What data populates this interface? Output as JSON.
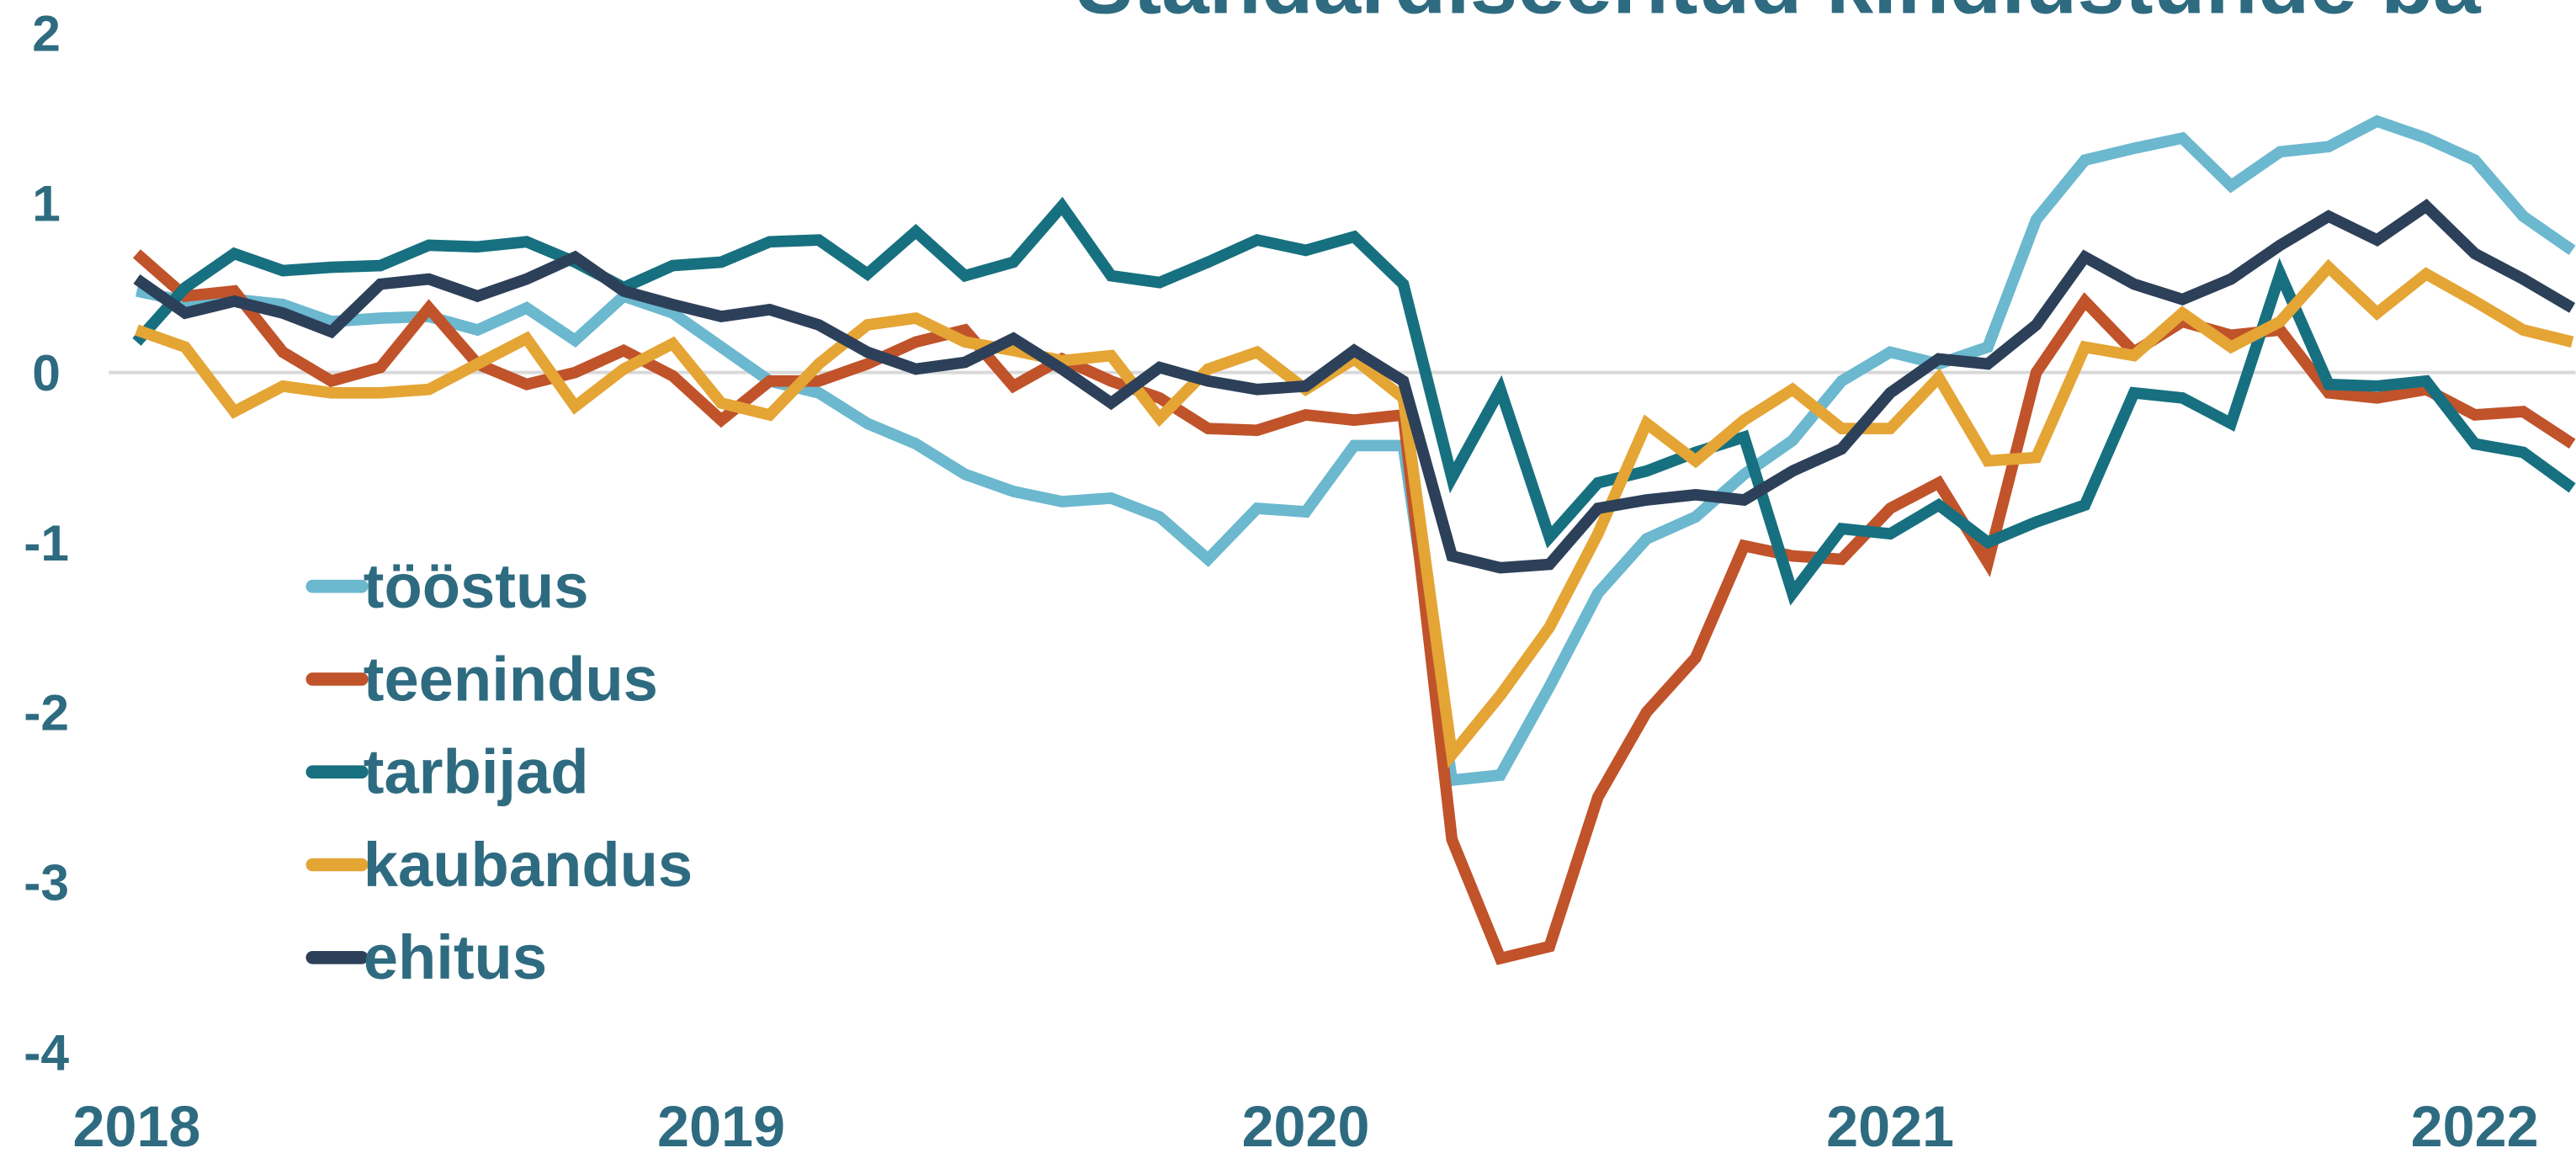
{
  "chart_data": {
    "type": "line",
    "title": "Standardiseeritud kindlustunde ba",
    "x": [
      2018,
      2018.083,
      2018.167,
      2018.25,
      2018.333,
      2018.417,
      2018.5,
      2018.583,
      2018.667,
      2018.75,
      2018.833,
      2018.917,
      2019,
      2019.083,
      2019.167,
      2019.25,
      2019.333,
      2019.417,
      2019.5,
      2019.583,
      2019.667,
      2019.75,
      2019.833,
      2019.917,
      2020,
      2020.083,
      2020.167,
      2020.25,
      2020.333,
      2020.417,
      2020.5,
      2020.583,
      2020.667,
      2020.75,
      2020.833,
      2020.917,
      2021,
      2021.083,
      2021.167,
      2021.25,
      2021.333,
      2021.417,
      2021.5,
      2021.583,
      2021.667,
      2021.75,
      2021.833,
      2021.917,
      2022,
      2022.083,
      2022.167
    ],
    "xlim": [
      2018,
      2022.167
    ],
    "xticks": [
      2018,
      2019,
      2020,
      2021,
      2022
    ],
    "ylim": [
      -4,
      2
    ],
    "yticks": [
      -4,
      -3,
      -2,
      -1,
      0,
      1,
      2
    ],
    "zero_line": true,
    "legend": "left",
    "series": [
      {
        "name": "tööstus",
        "color": "#6bb8cf",
        "values": [
          0.48,
          0.42,
          0.43,
          0.4,
          0.3,
          0.32,
          0.33,
          0.25,
          0.38,
          0.19,
          0.45,
          0.35,
          0.15,
          -0.05,
          -0.12,
          -0.3,
          -0.42,
          -0.6,
          -0.7,
          -0.76,
          -0.74,
          -0.85,
          -1.1,
          -0.8,
          -0.82,
          -0.43,
          -0.43,
          -2.4,
          -2.37,
          -1.85,
          -1.3,
          -0.98,
          -0.85,
          -0.6,
          -0.4,
          -0.05,
          0.12,
          0.05,
          0.15,
          0.9,
          1.25,
          1.32,
          1.38,
          1.1,
          1.3,
          1.33,
          1.48,
          1.38,
          1.25,
          0.92,
          0.72
        ]
      },
      {
        "name": "teenindus",
        "color": "#c0532a",
        "values": [
          0.7,
          0.45,
          0.48,
          0.12,
          -0.05,
          0.03,
          0.38,
          0.05,
          -0.07,
          0.0,
          0.13,
          -0.02,
          -0.28,
          -0.05,
          -0.05,
          0.05,
          0.18,
          0.25,
          -0.08,
          0.08,
          -0.05,
          -0.15,
          -0.33,
          -0.34,
          -0.25,
          -0.28,
          -0.25,
          -2.75,
          -3.45,
          -3.38,
          -2.5,
          -2.0,
          -1.68,
          -1.02,
          -1.08,
          -1.1,
          -0.8,
          -0.65,
          -1.12,
          0.0,
          0.42,
          0.12,
          0.3,
          0.22,
          0.25,
          -0.12,
          -0.15,
          -0.1,
          -0.25,
          -0.23,
          -0.42
        ]
      },
      {
        "name": "tarbijad",
        "color": "#17707f",
        "values": [
          0.18,
          0.5,
          0.7,
          0.6,
          0.62,
          0.63,
          0.75,
          0.74,
          0.77,
          0.65,
          0.5,
          0.63,
          0.65,
          0.77,
          0.78,
          0.58,
          0.83,
          0.57,
          0.65,
          0.98,
          0.57,
          0.53,
          0.65,
          0.78,
          0.72,
          0.8,
          0.52,
          -0.62,
          -0.1,
          -0.97,
          -0.65,
          -0.58,
          -0.47,
          -0.38,
          -1.3,
          -0.92,
          -0.95,
          -0.78,
          -1.0,
          -0.88,
          -0.78,
          -0.12,
          -0.15,
          -0.3,
          0.58,
          -0.07,
          -0.08,
          -0.05,
          -0.42,
          -0.47,
          -0.68
        ]
      },
      {
        "name": "kaubandus",
        "color": "#e4a535",
        "values": [
          0.25,
          0.15,
          -0.23,
          -0.08,
          -0.12,
          -0.12,
          -0.1,
          0.05,
          0.2,
          -0.2,
          0.02,
          0.17,
          -0.18,
          -0.25,
          0.05,
          0.28,
          0.32,
          0.18,
          0.13,
          0.07,
          0.1,
          -0.27,
          0.02,
          0.12,
          -0.1,
          0.08,
          -0.15,
          -2.25,
          -1.9,
          -1.5,
          -0.95,
          -0.3,
          -0.52,
          -0.28,
          -0.1,
          -0.33,
          -0.33,
          -0.03,
          -0.52,
          -0.5,
          0.15,
          0.1,
          0.35,
          0.15,
          0.3,
          0.62,
          0.35,
          0.58,
          0.42,
          0.25,
          0.18
        ]
      },
      {
        "name": "ehitus",
        "color": "#2d4059",
        "values": [
          0.55,
          0.35,
          0.42,
          0.35,
          0.24,
          0.52,
          0.55,
          0.45,
          0.55,
          0.68,
          0.48,
          0.4,
          0.33,
          0.37,
          0.28,
          0.12,
          0.02,
          0.06,
          0.2,
          0.02,
          -0.18,
          0.03,
          -0.05,
          -0.1,
          -0.08,
          0.13,
          -0.05,
          -1.08,
          -1.15,
          -1.13,
          -0.8,
          -0.75,
          -0.72,
          -0.75,
          -0.58,
          -0.45,
          -0.12,
          0.08,
          0.05,
          0.28,
          0.68,
          0.52,
          0.43,
          0.55,
          0.75,
          0.92,
          0.78,
          0.98,
          0.7,
          0.55,
          0.38
        ]
      }
    ]
  }
}
